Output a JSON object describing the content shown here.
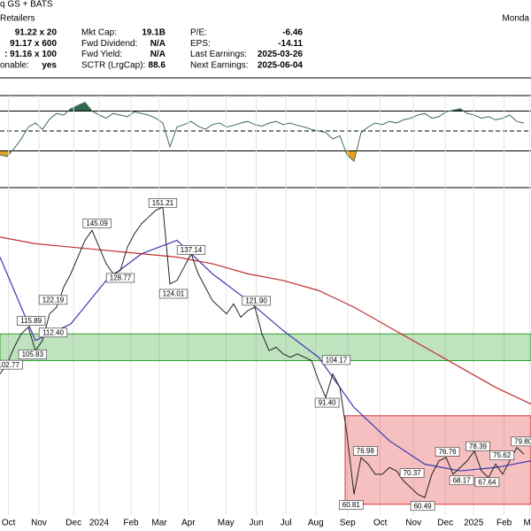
{
  "header": {
    "exchange": "q GS + BATS",
    "industry": "Retailers",
    "date": "Monda",
    "rows": [
      {
        "left": "91.22 x 20",
        "label2": "Mkt Cap:",
        "value2": "19.1B",
        "label3": "P/E:",
        "value3": "-6.46"
      },
      {
        "left": "91.17 x 600",
        "label2": "Fwd Dividend:",
        "value2": "N/A",
        "label3": "EPS:",
        "value3": "-14.11"
      },
      {
        "left": ": 91.16 x 100",
        "label2": "Fwd Yield:",
        "value2": "N/A",
        "label3": "Last Earnings:",
        "value3": "2025-03-26"
      },
      {
        "left_label": "onable:",
        "left": "yes",
        "label2": "SCTR (LrgCap):",
        "value2": "88.6",
        "label3": "Next Earnings:",
        "value3": "2025-06-04"
      }
    ]
  },
  "chart_data": [
    {
      "type": "line",
      "color": "#3e6b5a",
      "upper_fill": "#2e6b4e",
      "lower_fill": "#e8a020",
      "levels": [
        75,
        50,
        25
      ],
      "ylim": [
        0,
        100
      ],
      "xlim": [
        0,
        75
      ],
      "x": [
        0,
        1,
        2,
        3,
        4,
        5,
        6,
        7,
        8,
        9,
        10,
        11,
        12,
        13,
        14,
        15,
        16,
        17,
        18,
        19,
        20,
        21,
        22,
        23,
        24,
        25,
        26,
        27,
        28,
        29,
        30,
        31,
        32,
        33,
        34,
        35,
        36,
        37,
        38,
        39,
        40,
        41,
        42,
        43,
        44,
        45,
        46,
        47,
        48,
        49,
        50,
        51,
        52,
        53,
        54,
        55,
        56,
        57,
        58,
        59,
        60,
        61,
        62,
        63,
        64,
        65,
        66,
        67,
        68,
        69,
        70,
        71,
        72,
        73,
        74
      ],
      "values": [
        20,
        18,
        28,
        40,
        55,
        60,
        52,
        65,
        72,
        70,
        78,
        82,
        86,
        75,
        70,
        66,
        72,
        70,
        68,
        74,
        72,
        70,
        66,
        60,
        30,
        55,
        58,
        62,
        56,
        52,
        58,
        60,
        55,
        57,
        60,
        62,
        58,
        56,
        60,
        62,
        58,
        60,
        57,
        55,
        52,
        50,
        48,
        40,
        44,
        20,
        12,
        48,
        55,
        60,
        58,
        62,
        60,
        64,
        66,
        70,
        72,
        66,
        68,
        74,
        76,
        78,
        72,
        70,
        66,
        68,
        64,
        66,
        70,
        62,
        60
      ]
    },
    {
      "type": "line",
      "color": "#222222",
      "ylim": [
        53,
        155
      ],
      "xlim": [
        0,
        75
      ],
      "xticks": [
        {
          "value": 1.2,
          "label": "Oct"
        },
        {
          "value": 5.5,
          "label": "Nov"
        },
        {
          "value": 10.4,
          "label": "Dec"
        },
        {
          "value": 14,
          "label": "2024"
        },
        {
          "value": 18.5,
          "label": "Feb"
        },
        {
          "value": 22.5,
          "label": "Mar"
        },
        {
          "value": 26.6,
          "label": "Apr"
        },
        {
          "value": 31.9,
          "label": "May"
        },
        {
          "value": 36.2,
          "label": "Jun"
        },
        {
          "value": 40.4,
          "label": "Jul"
        },
        {
          "value": 44.6,
          "label": "Aug"
        },
        {
          "value": 49.1,
          "label": "Sep"
        },
        {
          "value": 53.7,
          "label": "Oct"
        },
        {
          "value": 58.4,
          "label": "Nov"
        },
        {
          "value": 62.9,
          "label": "Dec"
        },
        {
          "value": 66.9,
          "label": "2025"
        },
        {
          "value": 71.2,
          "label": "Feb"
        },
        {
          "value": 74.8,
          "label": "Ma"
        }
      ],
      "x": [
        0,
        1,
        2,
        3,
        4,
        5,
        6,
        7,
        8,
        9,
        10,
        11,
        12,
        13,
        14,
        15,
        16,
        17,
        18,
        19,
        20,
        21,
        22,
        23,
        24,
        25,
        26,
        27,
        28,
        29,
        30,
        31,
        32,
        33,
        34,
        35,
        36,
        37,
        38,
        39,
        40,
        41,
        42,
        43,
        44,
        45,
        46,
        47,
        48,
        49,
        50,
        51,
        52,
        53,
        54,
        55,
        56,
        57,
        58,
        59,
        60,
        61,
        62,
        63,
        64,
        65,
        66,
        67,
        68,
        69,
        70,
        71,
        72,
        73,
        74
      ],
      "values": [
        100,
        103,
        108,
        112,
        114,
        107,
        110,
        118,
        120,
        126,
        130,
        135,
        140,
        143,
        138,
        133,
        130,
        131,
        138,
        142,
        145,
        147,
        149,
        150,
        127,
        128,
        132,
        136,
        130,
        126,
        122,
        120,
        118,
        121,
        117,
        119,
        120,
        112,
        107,
        108,
        106,
        105,
        106,
        105,
        104,
        98,
        93,
        100,
        96,
        82,
        64,
        75,
        73,
        70,
        70,
        72,
        71,
        68,
        66,
        64,
        63,
        70,
        74,
        75,
        70,
        72,
        74,
        77,
        71,
        69,
        73,
        70,
        74,
        78,
        76
      ],
      "moving_averages": [
        {
          "color": "#3a3ab0",
          "x": [
            0,
            5,
            10,
            15,
            20,
            25,
            30,
            35,
            40,
            45,
            50,
            55,
            60,
            65,
            70,
            75
          ],
          "values": [
            135,
            110,
            115,
            128,
            136,
            140,
            130,
            122,
            113,
            105,
            90,
            80,
            73,
            71,
            72,
            74
          ]
        },
        {
          "color": "#c03030",
          "x": [
            0,
            5,
            10,
            15,
            20,
            25,
            30,
            35,
            40,
            45,
            50,
            55,
            60,
            65,
            70,
            75
          ],
          "values": [
            141,
            139,
            138,
            137,
            136,
            135,
            133,
            130,
            128,
            125,
            120,
            114,
            108,
            102,
            96,
            91
          ]
        }
      ],
      "zones": [
        {
          "color": "#2ca02c",
          "x": [
            0,
            75
          ],
          "range": [
            104,
            112
          ]
        },
        {
          "color": "#e03030",
          "x": [
            48.75,
            75
          ],
          "range": [
            61,
            87.5
          ]
        }
      ],
      "annotations": [
        {
          "x": 1.2,
          "value": 102.77,
          "label": "102.77"
        },
        {
          "x": 4.4,
          "value": 115.89,
          "label": "115.89"
        },
        {
          "x": 4.6,
          "value": 105.83,
          "label": "105.83"
        },
        {
          "x": 7.5,
          "value": 112.4,
          "label": "112.40"
        },
        {
          "x": 7.5,
          "value": 122.19,
          "label": "122.19"
        },
        {
          "x": 13.7,
          "value": 145.09,
          "label": "145.09"
        },
        {
          "x": 17,
          "value": 128.77,
          "label": "128.77"
        },
        {
          "x": 23,
          "value": 151.21,
          "label": "151.21"
        },
        {
          "x": 27,
          "value": 137.14,
          "label": "137.14"
        },
        {
          "x": 24.5,
          "value": 124.01,
          "label": "124.01"
        },
        {
          "x": 36.2,
          "value": 121.9,
          "label": "121.90"
        },
        {
          "x": 47.5,
          "value": 104.17,
          "label": "104.17"
        },
        {
          "x": 46.2,
          "value": 91.4,
          "label": "91.40"
        },
        {
          "x": 49.6,
          "value": 60.81,
          "label": "60.81"
        },
        {
          "x": 51.6,
          "value": 76.98,
          "label": "76.98"
        },
        {
          "x": 58.2,
          "value": 70.37,
          "label": "70.37"
        },
        {
          "x": 59.7,
          "value": 60.49,
          "label": "60.49"
        },
        {
          "x": 63.2,
          "value": 76.76,
          "label": "76.76"
        },
        {
          "x": 65.2,
          "value": 68.17,
          "label": "68.17"
        },
        {
          "x": 67.5,
          "value": 78.39,
          "label": "78.39"
        },
        {
          "x": 68.8,
          "value": 67.64,
          "label": "67.64"
        },
        {
          "x": 70.9,
          "value": 75.62,
          "label": "75.62"
        },
        {
          "x": 73.9,
          "value": 79.8,
          "label": "79.80"
        }
      ]
    }
  ]
}
